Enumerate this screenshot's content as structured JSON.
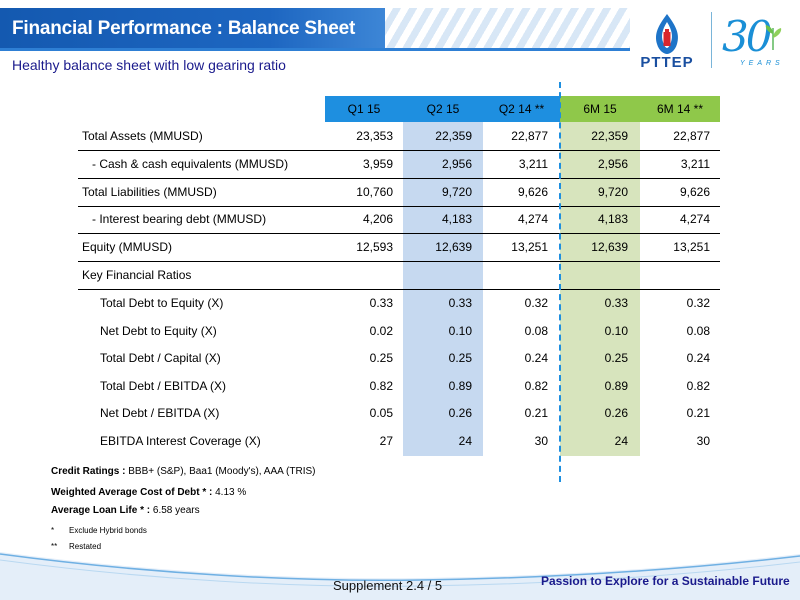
{
  "header": {
    "title": "Financial Performance : Balance Sheet",
    "subtitle": "Healthy balance sheet with low gearing ratio"
  },
  "logo": {
    "company": "PTTEP",
    "anniversary_number": "30",
    "anniversary_word": "YEARS"
  },
  "colors": {
    "header_blue": "#1e8fe0",
    "header_green": "#8fc84a",
    "column_blue": "#c6d9f0",
    "column_green": "#d7e4bd",
    "title_bar": "#1a5fb4",
    "tagline": "#1a1a8c"
  },
  "table": {
    "columns": [
      "Q1 15",
      "Q2 15",
      "Q2 14 **",
      "6M 15",
      "6M 14 **"
    ],
    "rows": [
      {
        "label": "Total Assets (MMUSD)",
        "values": [
          "23,353",
          "22,359",
          "22,877",
          "22,359",
          "22,877"
        ]
      },
      {
        "label": "- Cash & cash equivalents (MMUSD)",
        "values": [
          "3,959",
          "2,956",
          "3,211",
          "2,956",
          "3,211"
        ]
      },
      {
        "label": "Total Liabilities (MMUSD)",
        "values": [
          "10,760",
          "9,720",
          "9,626",
          "9,720",
          "9,626"
        ]
      },
      {
        "label": "-  Interest bearing debt (MMUSD)",
        "values": [
          "4,206",
          "4,183",
          "4,274",
          "4,183",
          "4,274"
        ]
      },
      {
        "label": "Equity (MMUSD)",
        "values": [
          "12,593",
          "12,639",
          "13,251",
          "12,639",
          "13,251"
        ]
      }
    ],
    "ratios_header": "Key Financial Ratios",
    "ratios": [
      {
        "label": "Total Debt to Equity (X)",
        "values": [
          "0.33",
          "0.33",
          "0.32",
          "0.33",
          "0.32"
        ]
      },
      {
        "label": "Net Debt to Equity (X)",
        "values": [
          "0.02",
          "0.10",
          "0.08",
          "0.10",
          "0.08"
        ]
      },
      {
        "label": "Total Debt / Capital (X)",
        "values": [
          "0.25",
          "0.25",
          "0.24",
          "0.25",
          "0.24"
        ]
      },
      {
        "label": "Total Debt / EBITDA (X)",
        "values": [
          "0.82",
          "0.89",
          "0.82",
          "0.89",
          "0.82"
        ]
      },
      {
        "label": "Net Debt / EBITDA (X)",
        "values": [
          "0.05",
          "0.26",
          "0.21",
          "0.26",
          "0.21"
        ]
      },
      {
        "label": "EBITDA Interest Coverage (X)",
        "values": [
          "27",
          "24",
          "30",
          "24",
          "30"
        ]
      }
    ]
  },
  "notes": {
    "credit_label": "Credit Ratings :",
    "credit_value": " BBB+ (S&P), Baa1 (Moody's),  AAA (TRIS)",
    "cost_label": "Weighted Average Cost of Debt * :",
    "cost_value": " 4.13 %",
    "loan_label": "Average Loan Life * :",
    "loan_value": " 6.58  years",
    "footnote1_mark": "*",
    "footnote1_text": "Exclude Hybrid bonds",
    "footnote2_mark": "**",
    "footnote2_text": "Restated"
  },
  "footer": {
    "page": "Supplement  2.4 / 5",
    "tagline": "Passion to Explore for a Sustainable Future"
  }
}
